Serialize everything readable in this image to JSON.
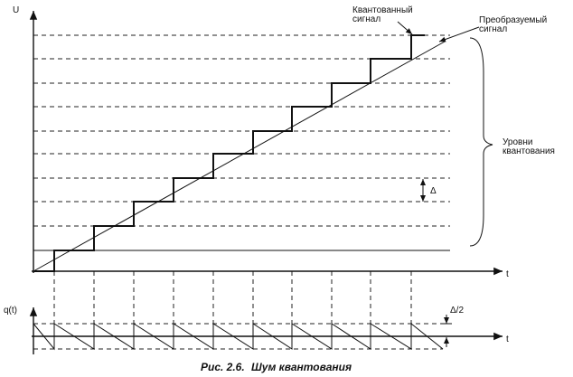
{
  "axes": {
    "top_y": "U",
    "top_x": "t",
    "bottom_y": "q(t)",
    "bottom_x": "t"
  },
  "labels": {
    "quantized": "Квантованный сигнал",
    "converted": "Преобразуемый сигнал",
    "levels": "Уровни квантования",
    "delta": "Δ",
    "half_delta": "Δ/2"
  },
  "caption": {
    "number": "Рис. 2.6.",
    "text": "Шум квантования"
  }
}
